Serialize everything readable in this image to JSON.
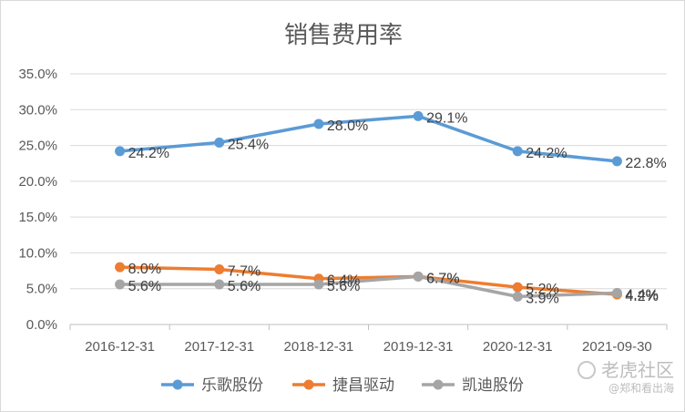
{
  "chart_data": {
    "type": "line",
    "title": "销售费用率",
    "categories": [
      "2016-12-31",
      "2017-12-31",
      "2018-12-31",
      "2019-12-31",
      "2020-12-31",
      "2021-09-30"
    ],
    "ylim": [
      0,
      35
    ],
    "yticks": [
      0,
      5,
      10,
      15,
      20,
      25,
      30,
      35
    ],
    "ytick_labels": [
      "0.0%",
      "5.0%",
      "10.0%",
      "15.0%",
      "20.0%",
      "25.0%",
      "30.0%",
      "35.0%"
    ],
    "grid": true,
    "legend_position": "bottom",
    "series": [
      {
        "name": "乐歌股份",
        "color": "#5b9bd5",
        "values": [
          24.2,
          25.4,
          28.0,
          29.1,
          24.2,
          22.8
        ],
        "labels": [
          "24.2%",
          "25.4%",
          "28.0%",
          "29.1%",
          "24.2%",
          "22.8%"
        ]
      },
      {
        "name": "捷昌驱动",
        "color": "#ed7d31",
        "values": [
          8.0,
          7.7,
          6.4,
          6.7,
          5.2,
          4.2
        ],
        "labels": [
          "8.0%",
          "7.7%",
          "6.4%",
          "6.7%",
          "5.2%",
          "4.2%"
        ]
      },
      {
        "name": "凯迪股份",
        "color": "#a5a5a5",
        "values": [
          5.6,
          5.6,
          5.6,
          6.7,
          3.9,
          4.4
        ],
        "labels": [
          "5.6%",
          "5.6%",
          "5.6%",
          "6.7%",
          "3.9%",
          "4.4%"
        ]
      }
    ]
  },
  "watermark": {
    "brand": "老虎社区",
    "handle": "@郑和看出海"
  }
}
